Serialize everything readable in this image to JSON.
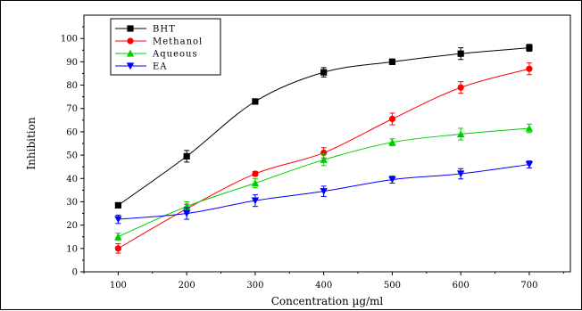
{
  "chart_data": {
    "type": "line",
    "xlabel": "Concentration µg/ml",
    "ylabel": "Inhibition",
    "x": [
      100,
      200,
      300,
      400,
      500,
      600,
      700
    ],
    "xlim": [
      50,
      760
    ],
    "ylim": [
      0,
      110
    ],
    "xticks": [
      "100",
      "200",
      "300",
      "400",
      "500",
      "600",
      "700"
    ],
    "yticks": [
      "0",
      "10",
      "20",
      "30",
      "40",
      "50",
      "60",
      "70",
      "80",
      "90",
      "100"
    ],
    "legend_position": "top-left",
    "grid": false,
    "series": [
      {
        "name": "BHT",
        "color": "#000000",
        "marker": "square",
        "values": [
          28.5,
          49.5,
          73,
          85.5,
          90,
          93.5,
          96
        ],
        "errors": [
          1,
          2.5,
          0.8,
          2,
          1.2,
          2.5,
          1.5
        ]
      },
      {
        "name": "Methanol",
        "color": "#ff0000",
        "marker": "circle",
        "values": [
          10,
          27,
          42,
          51,
          65.5,
          79,
          87
        ],
        "errors": [
          2,
          2,
          1,
          2.2,
          2.5,
          2.5,
          2.5
        ]
      },
      {
        "name": "Aqueous",
        "color": "#00cc00",
        "marker": "triangle-up",
        "values": [
          15,
          28,
          38,
          48,
          55.5,
          59,
          61.5
        ],
        "errors": [
          1.5,
          2,
          2,
          2.5,
          1.5,
          2.5,
          1.8
        ]
      },
      {
        "name": "EA",
        "color": "#0000ff",
        "marker": "triangle-down",
        "values": [
          22.5,
          25,
          30.5,
          34.5,
          39.5,
          42,
          46
        ],
        "errors": [
          1.8,
          2.5,
          2.5,
          2.2,
          1.5,
          2.2,
          1.5
        ]
      }
    ]
  }
}
